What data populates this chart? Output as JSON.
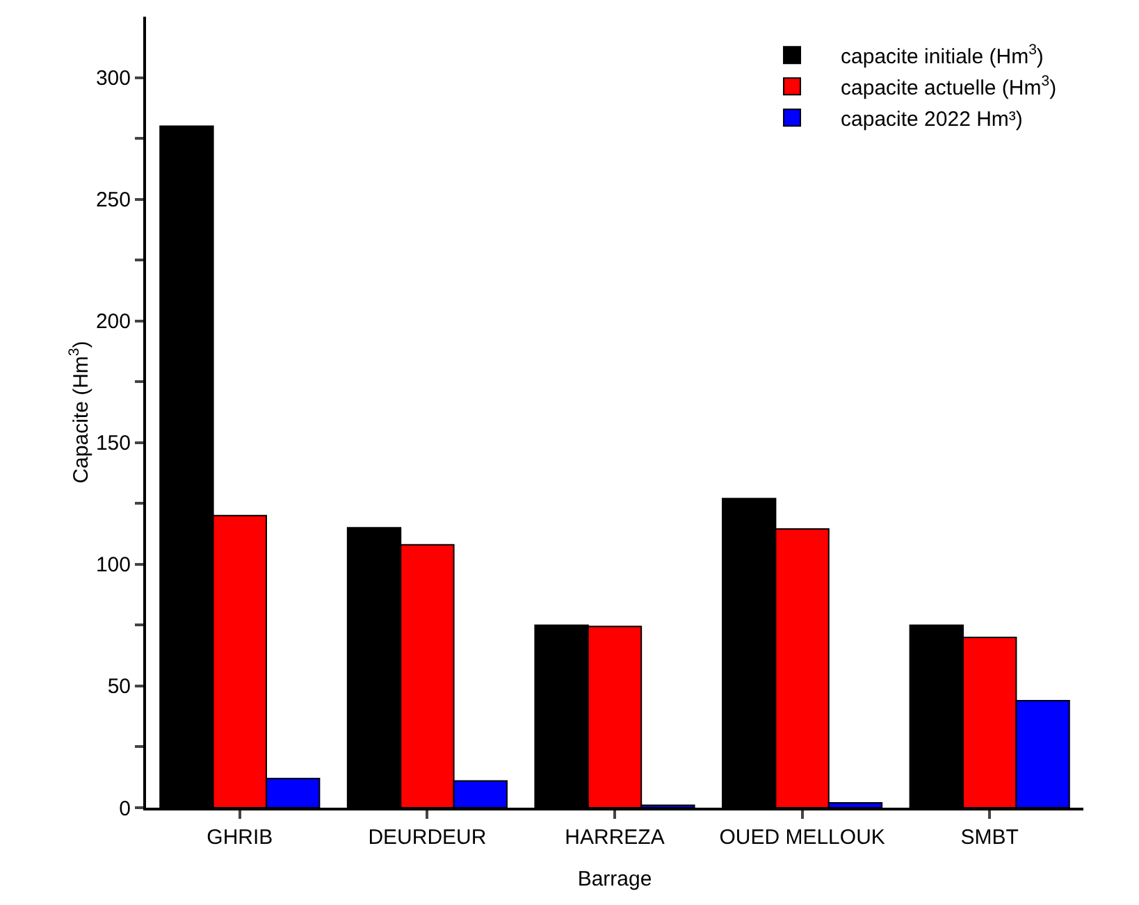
{
  "chart_data": {
    "type": "bar",
    "xlabel": "Barrage",
    "ylabel": "Capacite (Hm$^{3}$)",
    "categories": [
      "GHRIB",
      "DEURDEUR",
      "HARREZA",
      "OUED MELLOUK",
      "SMBT"
    ],
    "series": [
      {
        "name": "capacite initiale (Hm$^{3}$)",
        "color": "#000000",
        "values": [
          280,
          115,
          75,
          127,
          75
        ]
      },
      {
        "name": "capacite actuelle (Hm$^{3}$)",
        "color": "#ff0000",
        "values": [
          120,
          108,
          74.5,
          114.5,
          70
        ]
      },
      {
        "name": "capacite 2022 Hm³)",
        "color": "#0000ff",
        "values": [
          12,
          11,
          1,
          2,
          44
        ]
      }
    ],
    "ylim": [
      0,
      325
    ],
    "yticks": [
      0,
      {
        "value": 25,
        "label": null
      },
      50,
      {
        "value": 75,
        "label": null
      },
      100,
      {
        "value": 125,
        "label": null
      },
      150,
      {
        "value": 175,
        "label": null
      },
      200,
      {
        "value": 225,
        "label": null
      },
      250,
      {
        "value": 275,
        "label": null
      },
      300
    ],
    "grid": false,
    "legend": "top right"
  }
}
